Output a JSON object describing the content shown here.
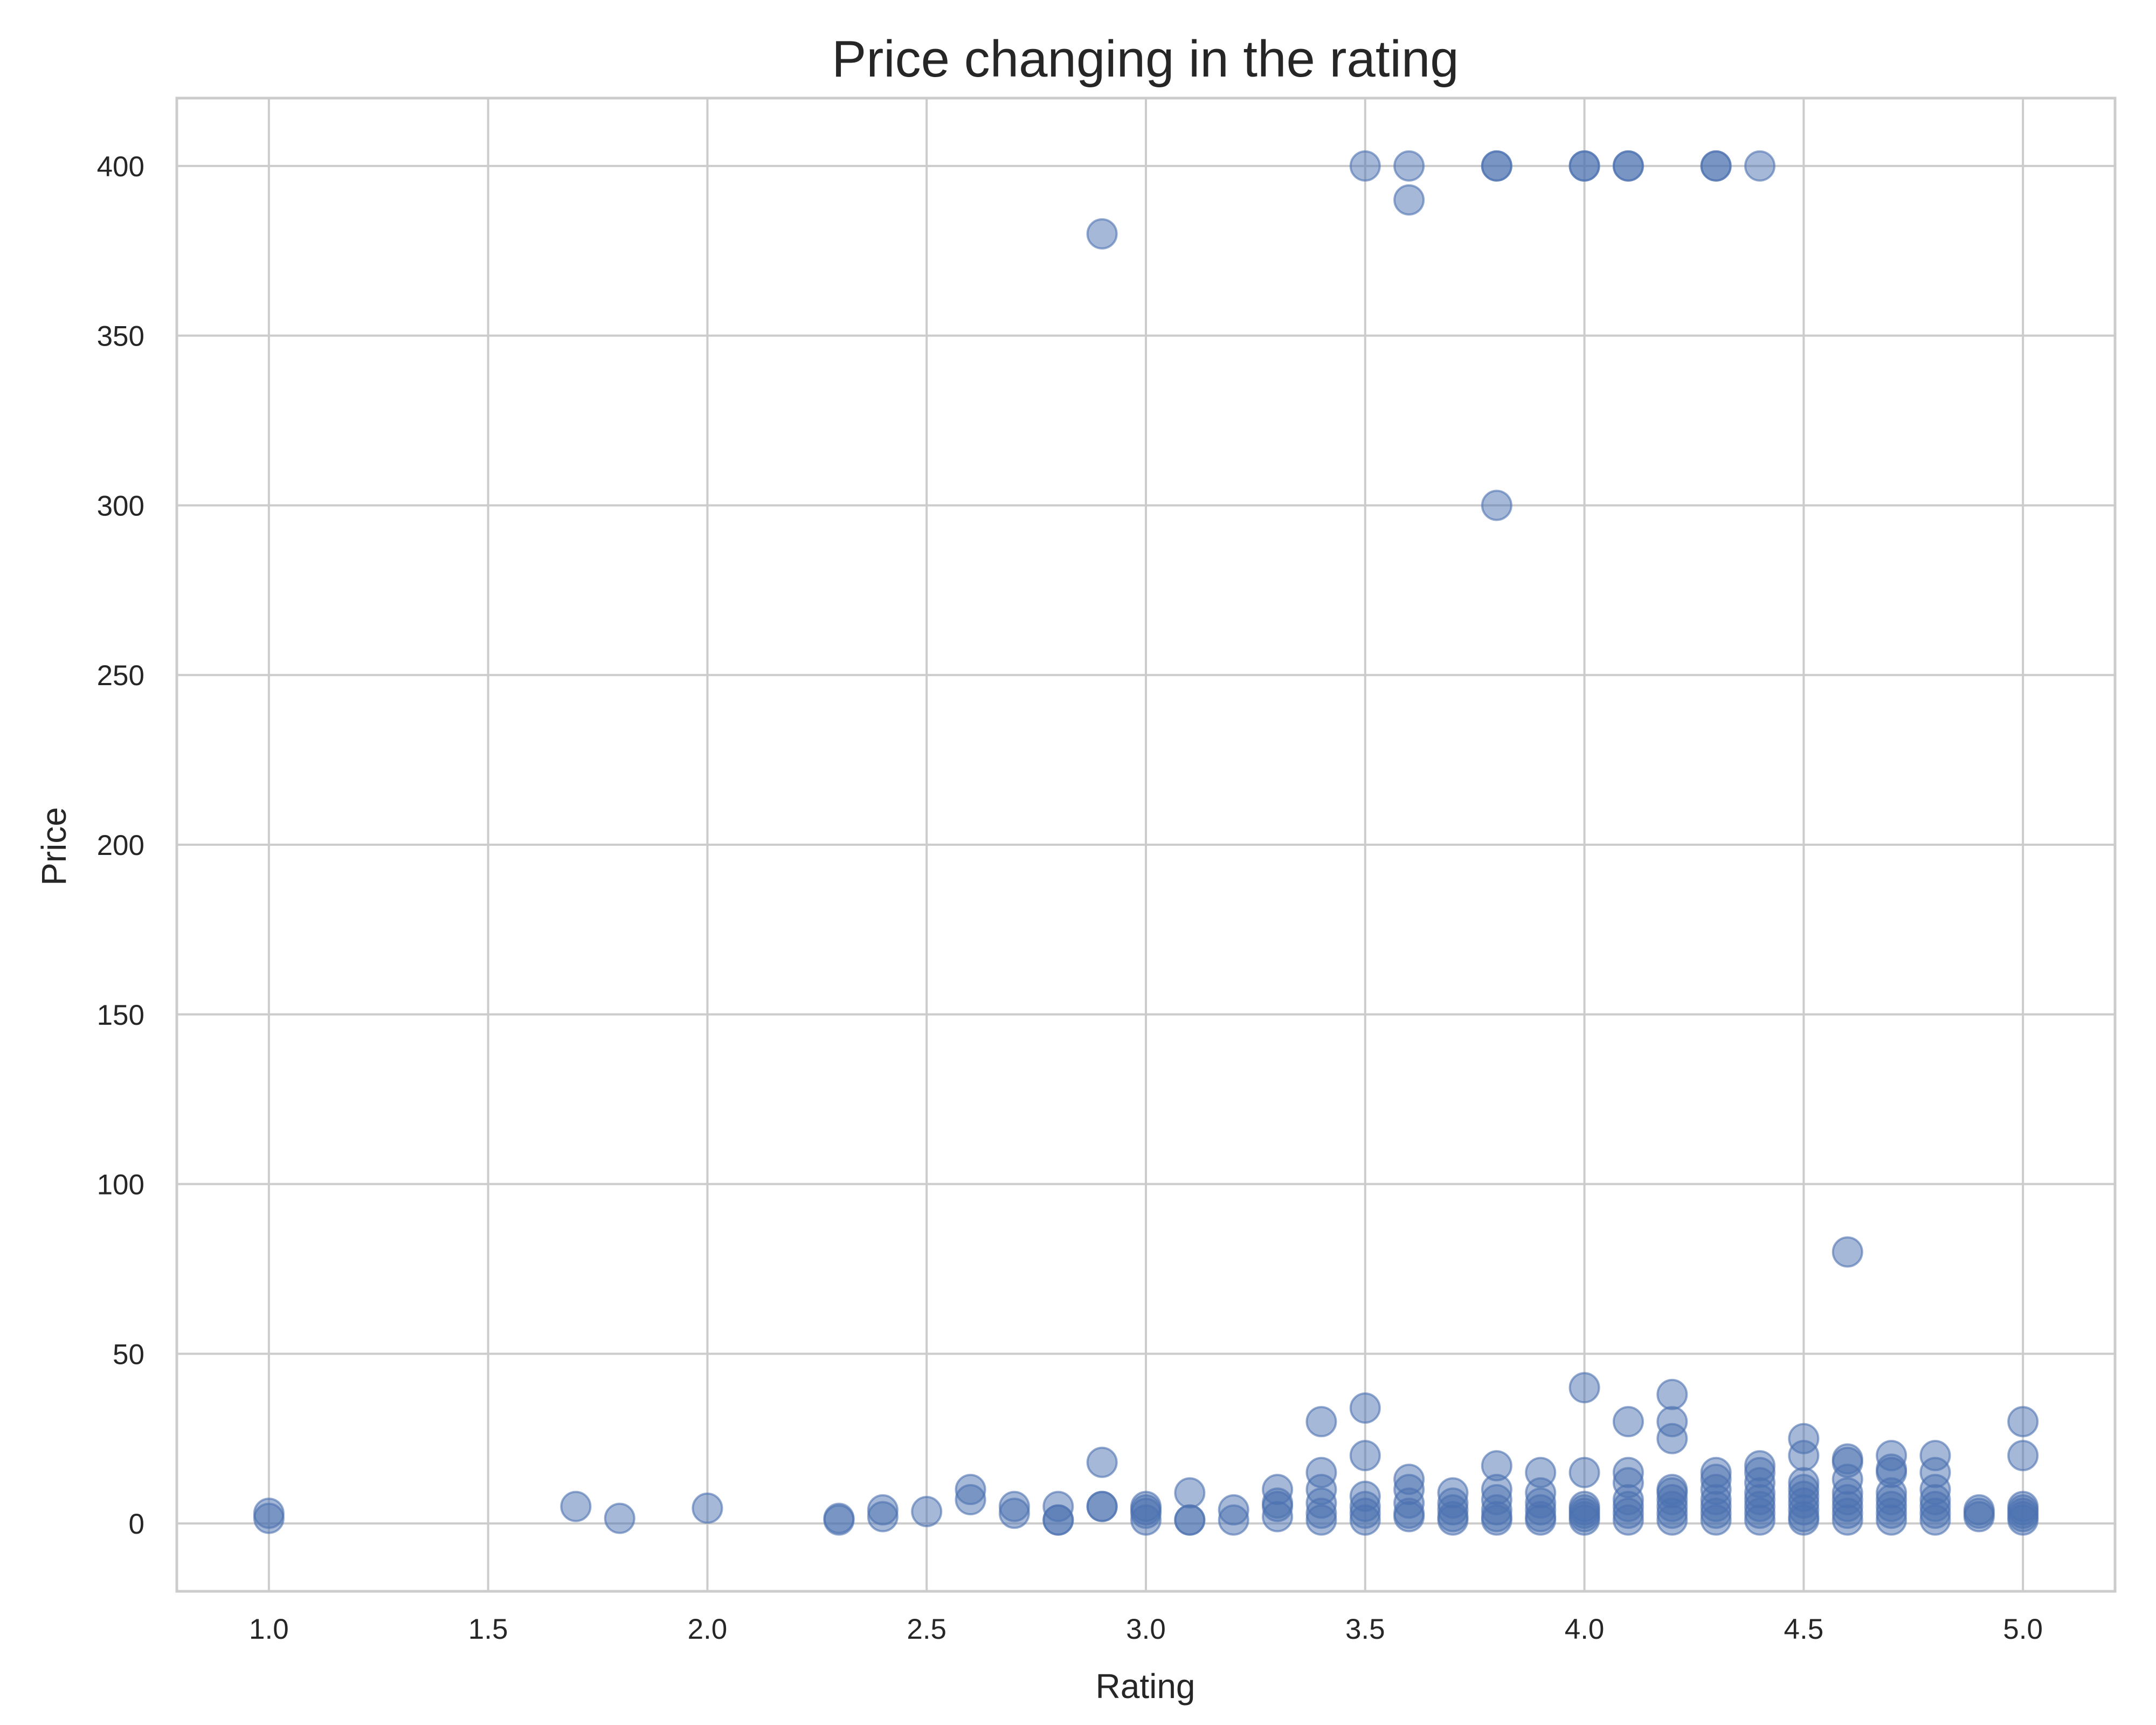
{
  "chart_data": {
    "type": "scatter",
    "title": "Price changing in the rating",
    "xlabel": "Rating",
    "ylabel": "Price",
    "xlim": [
      0.79,
      5.21
    ],
    "ylim": [
      -20,
      420
    ],
    "x_ticks": [
      1.0,
      1.5,
      2.0,
      2.5,
      3.0,
      3.5,
      4.0,
      4.5,
      5.0
    ],
    "x_tick_labels": [
      "1.0",
      "1.5",
      "2.0",
      "2.5",
      "3.0",
      "3.5",
      "4.0",
      "4.5",
      "5.0"
    ],
    "y_ticks": [
      0,
      50,
      100,
      150,
      200,
      250,
      300,
      350,
      400
    ],
    "y_tick_labels": [
      "0",
      "50",
      "100",
      "150",
      "200",
      "250",
      "300",
      "350",
      "400"
    ],
    "grid": true,
    "marker_color": "#4c72b0",
    "marker_alpha": 0.5,
    "series": [
      {
        "points": [
          [
            1.0,
            3
          ],
          [
            1.0,
            1.5
          ],
          [
            1.7,
            5
          ],
          [
            1.8,
            1.5
          ],
          [
            2.0,
            4.5
          ],
          [
            2.3,
            1
          ],
          [
            2.3,
            1.5
          ],
          [
            2.4,
            2
          ],
          [
            2.4,
            4
          ],
          [
            2.5,
            3.5
          ],
          [
            2.6,
            10
          ],
          [
            2.6,
            7
          ],
          [
            2.7,
            5
          ],
          [
            2.7,
            3
          ],
          [
            2.8,
            5
          ],
          [
            2.8,
            1
          ],
          [
            2.8,
            1
          ],
          [
            2.9,
            380
          ],
          [
            2.9,
            18
          ],
          [
            2.9,
            5
          ],
          [
            2.9,
            5
          ],
          [
            3.0,
            5
          ],
          [
            3.0,
            3
          ],
          [
            3.0,
            1
          ],
          [
            3.0,
            4
          ],
          [
            3.1,
            9
          ],
          [
            3.1,
            1
          ],
          [
            3.1,
            1
          ],
          [
            3.2,
            4
          ],
          [
            3.2,
            1
          ],
          [
            3.3,
            10
          ],
          [
            3.3,
            6
          ],
          [
            3.3,
            5
          ],
          [
            3.3,
            2
          ],
          [
            3.4,
            30
          ],
          [
            3.4,
            15
          ],
          [
            3.4,
            10
          ],
          [
            3.4,
            6
          ],
          [
            3.4,
            3
          ],
          [
            3.4,
            1
          ],
          [
            3.5,
            400
          ],
          [
            3.5,
            34
          ],
          [
            3.5,
            20
          ],
          [
            3.5,
            8
          ],
          [
            3.5,
            5
          ],
          [
            3.5,
            3
          ],
          [
            3.5,
            1
          ],
          [
            3.6,
            400
          ],
          [
            3.6,
            390
          ],
          [
            3.6,
            13
          ],
          [
            3.6,
            10
          ],
          [
            3.6,
            6
          ],
          [
            3.6,
            3
          ],
          [
            3.6,
            2
          ],
          [
            3.7,
            9
          ],
          [
            3.7,
            6
          ],
          [
            3.7,
            4
          ],
          [
            3.7,
            2
          ],
          [
            3.7,
            1
          ],
          [
            3.8,
            400
          ],
          [
            3.8,
            400
          ],
          [
            3.8,
            300
          ],
          [
            3.8,
            17
          ],
          [
            3.8,
            10
          ],
          [
            3.8,
            7
          ],
          [
            3.8,
            4
          ],
          [
            3.8,
            2
          ],
          [
            3.8,
            1
          ],
          [
            3.9,
            15
          ],
          [
            3.9,
            9
          ],
          [
            3.9,
            6
          ],
          [
            3.9,
            4
          ],
          [
            3.9,
            2
          ],
          [
            3.9,
            1
          ],
          [
            4.0,
            400
          ],
          [
            4.0,
            400
          ],
          [
            4.0,
            40
          ],
          [
            4.0,
            15
          ],
          [
            4.0,
            5
          ],
          [
            4.0,
            4
          ],
          [
            4.0,
            3
          ],
          [
            4.0,
            2
          ],
          [
            4.0,
            1
          ],
          [
            4.1,
            400
          ],
          [
            4.1,
            400
          ],
          [
            4.1,
            30
          ],
          [
            4.1,
            15
          ],
          [
            4.1,
            12
          ],
          [
            4.1,
            7
          ],
          [
            4.1,
            5
          ],
          [
            4.1,
            3
          ],
          [
            4.1,
            1
          ],
          [
            4.2,
            38
          ],
          [
            4.2,
            30
          ],
          [
            4.2,
            25
          ],
          [
            4.2,
            10
          ],
          [
            4.2,
            9
          ],
          [
            4.2,
            7
          ],
          [
            4.2,
            5
          ],
          [
            4.2,
            3
          ],
          [
            4.2,
            1
          ],
          [
            4.3,
            400
          ],
          [
            4.3,
            400
          ],
          [
            4.3,
            15
          ],
          [
            4.3,
            13
          ],
          [
            4.3,
            10
          ],
          [
            4.3,
            7
          ],
          [
            4.3,
            5
          ],
          [
            4.3,
            3
          ],
          [
            4.3,
            1
          ],
          [
            4.4,
            400
          ],
          [
            4.4,
            17
          ],
          [
            4.4,
            15
          ],
          [
            4.4,
            12
          ],
          [
            4.4,
            9
          ],
          [
            4.4,
            7
          ],
          [
            4.4,
            5
          ],
          [
            4.4,
            3
          ],
          [
            4.4,
            1
          ],
          [
            4.5,
            25
          ],
          [
            4.5,
            20
          ],
          [
            4.5,
            12
          ],
          [
            4.5,
            10
          ],
          [
            4.5,
            8
          ],
          [
            4.5,
            6
          ],
          [
            4.5,
            4
          ],
          [
            4.5,
            2
          ],
          [
            4.5,
            1
          ],
          [
            4.6,
            80
          ],
          [
            4.6,
            19
          ],
          [
            4.6,
            18
          ],
          [
            4.6,
            13
          ],
          [
            4.6,
            9
          ],
          [
            4.6,
            7
          ],
          [
            4.6,
            5
          ],
          [
            4.6,
            3
          ],
          [
            4.6,
            1
          ],
          [
            4.7,
            20
          ],
          [
            4.7,
            16
          ],
          [
            4.7,
            15
          ],
          [
            4.7,
            9
          ],
          [
            4.7,
            7
          ],
          [
            4.7,
            5
          ],
          [
            4.7,
            3
          ],
          [
            4.7,
            1
          ],
          [
            4.8,
            20
          ],
          [
            4.8,
            15
          ],
          [
            4.8,
            10
          ],
          [
            4.8,
            7
          ],
          [
            4.8,
            5
          ],
          [
            4.8,
            3
          ],
          [
            4.8,
            1
          ],
          [
            4.9,
            4
          ],
          [
            4.9,
            3
          ],
          [
            4.9,
            2
          ],
          [
            5.0,
            30
          ],
          [
            5.0,
            20
          ],
          [
            5.0,
            5
          ],
          [
            5.0,
            4
          ],
          [
            5.0,
            3
          ],
          [
            5.0,
            2
          ],
          [
            5.0,
            1
          ]
        ]
      }
    ]
  }
}
